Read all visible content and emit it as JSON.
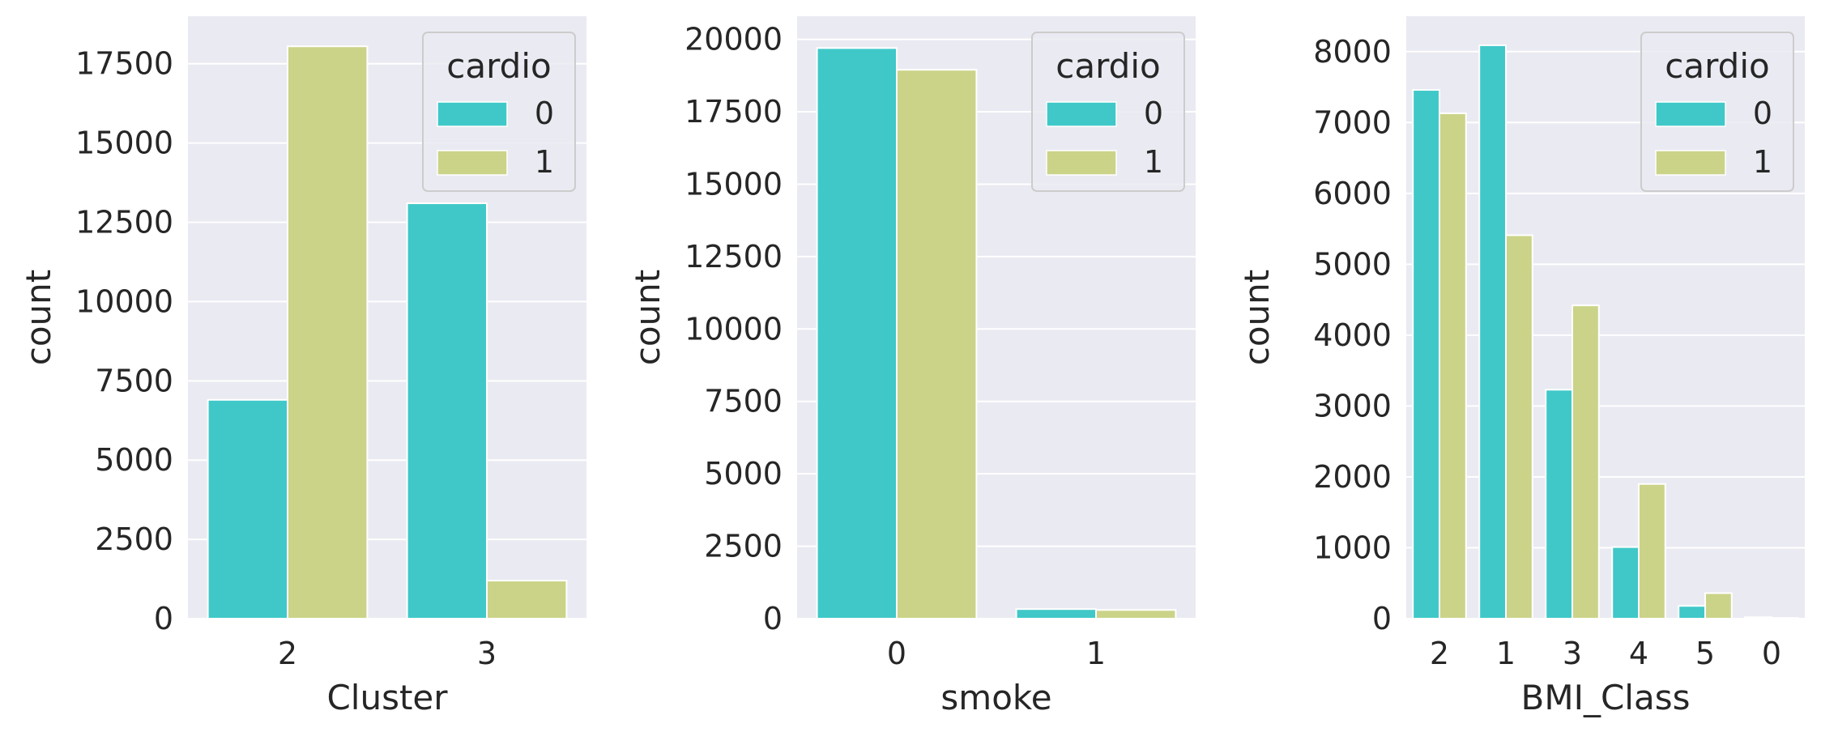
{
  "colors": {
    "series_0": "#40c8c8",
    "series_1": "#cbd389",
    "panel_bg": "#eaeaf2",
    "grid": "#ffffff"
  },
  "chart_data": [
    {
      "type": "bar",
      "xlabel": "Cluster",
      "ylabel": "count",
      "categories": [
        "2",
        "3"
      ],
      "series": [
        {
          "name": "0",
          "values": [
            6900,
            13100
          ]
        },
        {
          "name": "1",
          "values": [
            18050,
            1200
          ]
        }
      ],
      "ylim": [
        0,
        19000
      ],
      "yticks": [
        0,
        2500,
        5000,
        7500,
        10000,
        12500,
        15000,
        17500
      ],
      "legend": {
        "title": "cardio",
        "position": "top-right"
      },
      "grid": true
    },
    {
      "type": "bar",
      "xlabel": "smoke",
      "ylabel": "count",
      "categories": [
        "0",
        "1"
      ],
      "series": [
        {
          "name": "0",
          "values": [
            19700,
            330
          ]
        },
        {
          "name": "1",
          "values": [
            18950,
            300
          ]
        }
      ],
      "ylim": [
        0,
        20800
      ],
      "yticks": [
        0,
        2500,
        5000,
        7500,
        10000,
        12500,
        15000,
        17500,
        20000
      ],
      "legend": {
        "title": "cardio",
        "position": "top-right"
      },
      "grid": true
    },
    {
      "type": "bar",
      "xlabel": "BMI_Class",
      "ylabel": "count",
      "categories": [
        "2",
        "1",
        "3",
        "4",
        "5",
        "0"
      ],
      "series": [
        {
          "name": "0",
          "values": [
            7460,
            8090,
            3230,
            1010,
            180,
            20
          ]
        },
        {
          "name": "1",
          "values": [
            7130,
            5410,
            4420,
            1900,
            360,
            10
          ]
        }
      ],
      "ylim": [
        0,
        8500
      ],
      "yticks": [
        0,
        1000,
        2000,
        3000,
        4000,
        5000,
        6000,
        7000,
        8000
      ],
      "legend": {
        "title": "cardio",
        "position": "top-right"
      },
      "grid": true
    }
  ]
}
